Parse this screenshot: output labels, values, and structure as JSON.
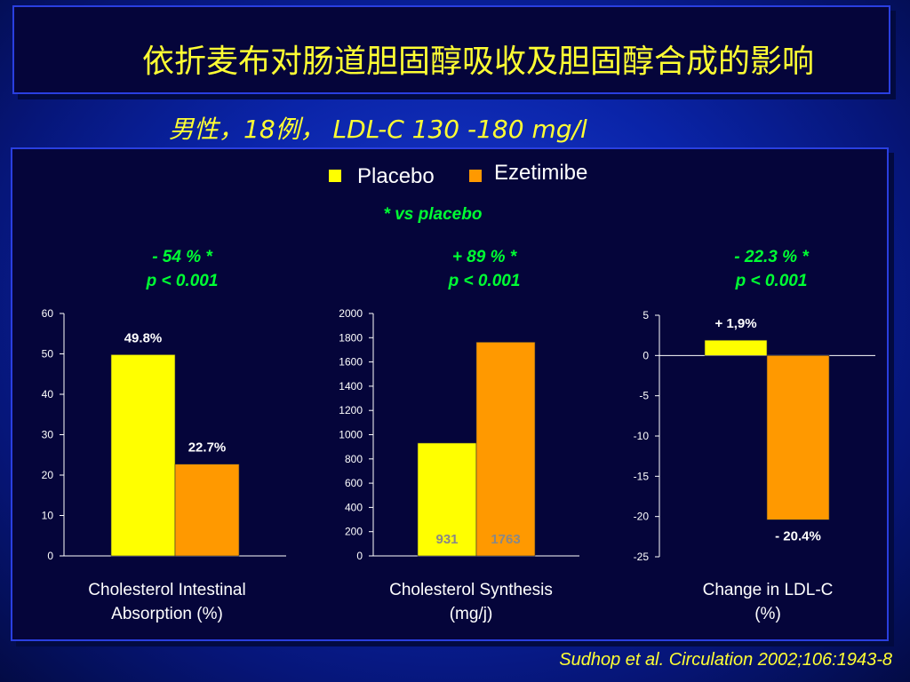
{
  "title": "依折麦布对肠道胆固醇吸收及胆固醇合成的影响",
  "subtitle": "男性，18例， LDL-C 130 -180 mg/l",
  "legend": {
    "placebo": "Placebo",
    "ezetimibe": "Ezetimibe"
  },
  "vs_note": "*  vs placebo",
  "citation": "Sudhop et al. Circulation 2002;106:1943-8",
  "colors": {
    "placebo": "#ffff00",
    "ezetimibe": "#ff9900",
    "stat_text": "#00ff33",
    "title_text": "#ffff33"
  },
  "chart_data": [
    {
      "type": "bar",
      "categories": [
        "Placebo",
        "Ezetimibe"
      ],
      "values": [
        49.8,
        22.7
      ],
      "data_labels": [
        "49.8%",
        "22.7%"
      ],
      "stat_line1": "- 54 % *",
      "stat_line2": "p < 0.001",
      "xlabel_line1": "Cholesterol Intestinal",
      "xlabel_line2": "Absorption (%)",
      "ylim": [
        0,
        60
      ],
      "yticks": [
        0,
        10,
        20,
        30,
        40,
        50,
        60
      ]
    },
    {
      "type": "bar",
      "categories": [
        "Placebo",
        "Ezetimibe"
      ],
      "values": [
        931,
        1763
      ],
      "data_labels": [
        "931",
        "1763"
      ],
      "stat_line1": "+ 89 % *",
      "stat_line2": "p < 0.001",
      "xlabel_line1": "Cholesterol Synthesis",
      "xlabel_line2": "(mg/j)",
      "ylim": [
        0,
        2000
      ],
      "yticks": [
        0,
        200,
        400,
        600,
        800,
        1000,
        1200,
        1400,
        1600,
        1800,
        2000
      ]
    },
    {
      "type": "bar",
      "categories": [
        "Placebo",
        "Ezetimibe"
      ],
      "values": [
        1.9,
        -20.4
      ],
      "data_labels": [
        "+ 1,9%",
        "- 20.4%"
      ],
      "stat_line1": "- 22.3 % *",
      "stat_line2": "p < 0.001",
      "xlabel_line1": "Change in LDL-C",
      "xlabel_line2": "(%)",
      "ylim": [
        -25,
        5
      ],
      "yticks": [
        -25,
        -20,
        -15,
        -10,
        -5,
        0,
        5
      ]
    }
  ]
}
